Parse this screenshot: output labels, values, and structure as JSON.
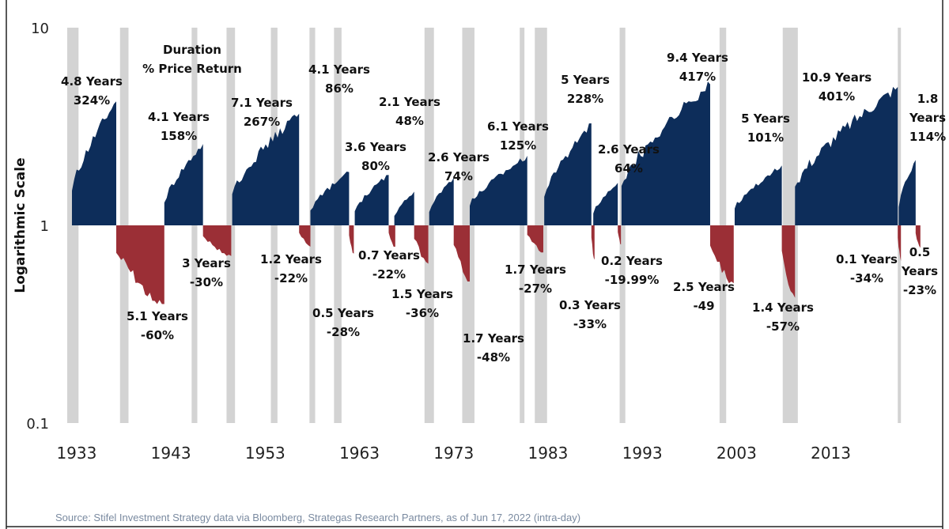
{
  "chart_data": {
    "type": "area",
    "title": "",
    "xlabel": "",
    "ylabel": "Logarithmic Scale",
    "y_scale": "log",
    "ylim": [
      0.1,
      10
    ],
    "y_ticks": [
      "10",
      "1",
      "0.1"
    ],
    "x_range": [
      1932,
      2022.6
    ],
    "x_ticks": [
      "1933",
      "1943",
      "1953",
      "1963",
      "1973",
      "1983",
      "1993",
      "2003",
      "2013"
    ],
    "legend_note": [
      "Duration",
      "% Price Return"
    ],
    "colors": {
      "bull": "#0d2d5a",
      "bear": "#9b2f36",
      "recession": "#d3d3d3"
    },
    "recessions": [
      [
        1932.0,
        1933.2
      ],
      [
        1937.6,
        1938.5
      ],
      [
        1945.2,
        1945.8
      ],
      [
        1948.9,
        1949.8
      ],
      [
        1953.6,
        1954.3
      ],
      [
        1957.7,
        1958.3
      ],
      [
        1960.3,
        1961.1
      ],
      [
        1969.9,
        1970.9
      ],
      [
        1973.9,
        1975.2
      ],
      [
        1980.0,
        1980.5
      ],
      [
        1981.6,
        1982.9
      ],
      [
        1990.6,
        1991.2
      ],
      [
        2001.2,
        2001.9
      ],
      [
        2007.9,
        2009.5
      ],
      [
        2020.1,
        2020.4
      ]
    ],
    "bull_markets": [
      {
        "duration": "4.8 Years",
        "return": "324%",
        "start": 1932.5,
        "end": 1937.2,
        "peak": 4.24
      },
      {
        "duration": "4.1 Years",
        "return": "158%",
        "start": 1942.3,
        "end": 1946.4,
        "peak": 2.58
      },
      {
        "duration": "7.1 Years",
        "return": "267%",
        "start": 1949.5,
        "end": 1956.6,
        "peak": 3.67
      },
      {
        "duration": "4.1 Years",
        "return": "86%",
        "start": 1957.8,
        "end": 1961.9,
        "peak": 1.86
      },
      {
        "duration": "3.6 Years",
        "return": "80%",
        "start": 1962.5,
        "end": 1966.1,
        "peak": 1.8
      },
      {
        "duration": "2.1 Years",
        "return": "48%",
        "start": 1966.7,
        "end": 1968.8,
        "peak": 1.48
      },
      {
        "duration": "2.6 Years",
        "return": "74%",
        "start": 1970.4,
        "end": 1973.0,
        "peak": 1.74
      },
      {
        "duration": "6.1 Years",
        "return": "125%",
        "start": 1974.7,
        "end": 1980.8,
        "peak": 2.25
      },
      {
        "duration": "5 Years",
        "return": "228%",
        "start": 1982.6,
        "end": 1987.6,
        "peak": 3.28
      },
      {
        "duration": "2.6 Years",
        "return": "64%",
        "start": 1987.8,
        "end": 1990.4,
        "peak": 1.64
      },
      {
        "duration": "9.4 Years",
        "return": "417%",
        "start": 1990.8,
        "end": 2000.2,
        "peak": 5.17
      },
      {
        "duration": "5 Years",
        "return": "101%",
        "start": 2002.8,
        "end": 2007.8,
        "peak": 2.01
      },
      {
        "duration": "10.9 Years",
        "return": "401%",
        "start": 2009.2,
        "end": 2020.1,
        "peak": 5.01
      },
      {
        "duration": "1.8 Years",
        "return": "114%",
        "start": 2020.2,
        "end": 2022.0,
        "peak": 2.14
      }
    ],
    "bear_markets": [
      {
        "duration": "5.1 Years",
        "return": "-60%",
        "start": 1937.2,
        "end": 1942.3,
        "trough": 0.4
      },
      {
        "duration": "3 Years",
        "return": "-30%",
        "start": 1946.4,
        "end": 1949.4,
        "trough": 0.7
      },
      {
        "duration": "1.2 Years",
        "return": "-22%",
        "start": 1956.6,
        "end": 1957.8,
        "trough": 0.78
      },
      {
        "duration": "0.5 Years",
        "return": "-28%",
        "start": 1961.9,
        "end": 1962.4,
        "trough": 0.72
      },
      {
        "duration": "0.7 Years",
        "return": "-22%",
        "start": 1966.1,
        "end": 1966.8,
        "trough": 0.78
      },
      {
        "duration": "1.5 Years",
        "return": "-36%",
        "start": 1968.8,
        "end": 1970.3,
        "trough": 0.64
      },
      {
        "duration": "1.7 Years",
        "return": "-48%",
        "start": 1973.0,
        "end": 1974.7,
        "trough": 0.52
      },
      {
        "duration": "1.7 Years",
        "return": "-27%",
        "start": 1980.8,
        "end": 1982.5,
        "trough": 0.73
      },
      {
        "duration": "0.3 Years",
        "return": "-33%",
        "start": 1987.6,
        "end": 1987.9,
        "trough": 0.67
      },
      {
        "duration": "0.2 Years",
        "return": "-19.99%",
        "start": 1990.4,
        "end": 1990.7,
        "trough": 0.8
      },
      {
        "duration": "2.5 Years",
        "return": "-49",
        "start": 2000.2,
        "end": 2002.7,
        "trough": 0.51
      },
      {
        "duration": "1.4 Years",
        "return": "-57%",
        "start": 2007.8,
        "end": 2009.2,
        "trough": 0.43
      },
      {
        "duration": "0.1 Years",
        "return": "-34%",
        "start": 2020.1,
        "end": 2020.2,
        "trough": 0.66
      },
      {
        "duration": "0.5 Years",
        "return": "-23%",
        "start": 2022.0,
        "end": 2022.5,
        "trough": 0.77
      }
    ],
    "source": "Source: Stifel Investment Strategy data via Bloomberg, Strategas Research Partners, as of Jun 17, 2022 (intra-day)"
  }
}
